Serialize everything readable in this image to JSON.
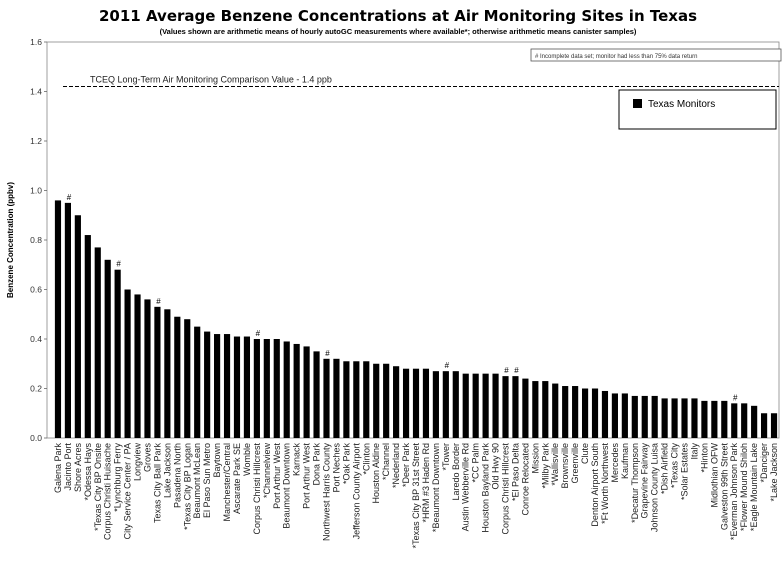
{
  "chart_data": {
    "type": "bar",
    "title": "2011 Average Benzene Concentrations at Air Monitoring Sites in Texas",
    "subtitle": "(Values shown are arithmetic means of hourly autoGC measurements where available*; otherwise arithmetic means canister samples)",
    "ylabel": "Benzene Concentration (ppbv)",
    "xlabel": "",
    "ylim": [
      0,
      1.6
    ],
    "yticks": [
      "0.0",
      "0.2",
      "0.4",
      "0.6",
      "0.8",
      "1.0",
      "1.2",
      "1.4",
      "1.6"
    ],
    "grid": false,
    "legend": {
      "position": "top-right",
      "entries": [
        "Texas Monitors"
      ]
    },
    "series": [
      {
        "name": "Texas Monitors",
        "color": "#000000"
      }
    ],
    "note": "# Incomplete data set; monitor had less than 75% data return",
    "reference_line": {
      "label": "TCEQ Long-Term Air Monitoring Comparison Value - 1.4 ppb",
      "value": 1.42,
      "style": "dashed"
    },
    "incomplete_marker": "#",
    "categories": [
      "Galena Park",
      "Jacinto Port",
      "Shore Acres",
      "*Odessa Hays",
      "*Texas City BP Onsite",
      "Corpus Christi Huisache",
      "*Lynchburg Ferry",
      "City Service Center / PA",
      "Longview",
      "Groves",
      "Texas City Ball Park",
      "Lake Jackson",
      "Pasadena North",
      "*Texas City BP Logan",
      "Beaumont McLean",
      "El Paso Sun Metro",
      "Baytown",
      "Manchester/Central",
      "Ascarate Park SE",
      "Womble",
      "Corpus Christi Hillcrest",
      "*Channelview",
      "Port Arthur West",
      "Beaumont Downtown",
      "Karnack",
      "Port Arthur West",
      "Dona Park",
      "Northwest Harris County",
      "Port Neches",
      "*Oak Park",
      "Jefferson County Airport",
      "*Clinton",
      "Houston Aldine",
      "*Channel",
      "*Nederland",
      "*Deer Park",
      "*Texas City BP 31st Street",
      "*HRM #3 Haden Rd",
      "*Beaumont Downtown",
      "*Tower",
      "Laredo Border",
      "Austin Webberville Rd",
      "*CC Palm",
      "Houston Bayland Park",
      "Old Hwy 90",
      "Corpus Christi Hillcrest",
      "*El Paso Delta",
      "Conroe Relocated",
      "Mission",
      "*Milby Park",
      "*Wallisville",
      "Brownsville",
      "Greenville",
      "Clute",
      "Denton Airport South",
      "*Ft Worth Northwest",
      "Mercedes",
      "Kaufman",
      "*Decatur Thompson",
      "Grapevine Fairway",
      "Johnson County Luisa",
      "*Dish Airfield",
      "*Texas City",
      "*Solar Estates",
      "Italy",
      "*Hinton",
      "Midlothian OFW",
      "Galveston 99th Street",
      "*Everman Johnson Park",
      "*Flower Mound Shiloh",
      "*Eagle Mountain Lake",
      "*Danciger",
      "*Lake Jackson"
    ],
    "values": [
      0.96,
      0.95,
      0.9,
      0.82,
      0.77,
      0.72,
      0.68,
      0.6,
      0.58,
      0.56,
      0.53,
      0.52,
      0.49,
      0.48,
      0.45,
      0.43,
      0.42,
      0.42,
      0.41,
      0.41,
      0.4,
      0.4,
      0.4,
      0.39,
      0.38,
      0.37,
      0.35,
      0.32,
      0.32,
      0.31,
      0.31,
      0.31,
      0.3,
      0.3,
      0.29,
      0.28,
      0.28,
      0.28,
      0.27,
      0.27,
      0.27,
      0.26,
      0.26,
      0.26,
      0.26,
      0.25,
      0.25,
      0.24,
      0.23,
      0.23,
      0.22,
      0.21,
      0.21,
      0.2,
      0.2,
      0.19,
      0.18,
      0.18,
      0.17,
      0.17,
      0.17,
      0.16,
      0.16,
      0.16,
      0.16,
      0.15,
      0.15,
      0.15,
      0.14,
      0.14,
      0.13,
      0.1,
      0.1
    ],
    "incomplete": [
      "Jacinto Port",
      "*Lynchburg Ferry",
      "Texas City Ball Park",
      "Corpus Christi Hillcrest",
      "Northwest Harris County",
      "*Tower",
      "*El Paso Delta",
      "*Everman Johnson Park"
    ]
  }
}
